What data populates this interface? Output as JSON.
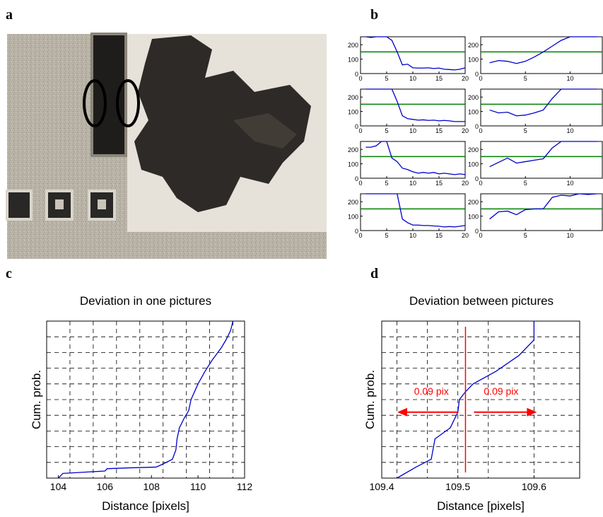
{
  "panels": {
    "a": {
      "letter": "a"
    },
    "b": {
      "letter": "b"
    },
    "c": {
      "letter": "c"
    },
    "d": {
      "letter": "d"
    }
  },
  "colors": {
    "series": "#0000cc",
    "threshold": "#008000",
    "marker": "#ff0000",
    "grid": "#000000"
  },
  "chart_data": [
    {
      "id": "b-profiles",
      "type": "line",
      "xticks": [
        0,
        5,
        10,
        15,
        20
      ],
      "yticks": [
        0,
        100,
        200
      ],
      "xlim": [
        0,
        20
      ],
      "ylim": [
        0,
        255
      ],
      "threshold": 150,
      "left_column": [
        {
          "x": [
            1,
            2,
            3,
            4,
            5,
            6,
            7,
            8,
            9,
            10,
            11,
            12,
            13,
            14,
            15,
            16,
            17,
            18,
            19,
            20
          ],
          "values": [
            255,
            250,
            255,
            255,
            255,
            230,
            150,
            60,
            65,
            40,
            38,
            38,
            40,
            35,
            38,
            30,
            28,
            25,
            30,
            40
          ]
        },
        {
          "x": [
            1,
            2,
            3,
            4,
            5,
            6,
            7,
            8,
            9,
            10,
            11,
            12,
            13,
            14,
            15,
            16,
            17,
            18,
            19,
            20
          ],
          "values": [
            255,
            255,
            255,
            255,
            255,
            255,
            170,
            70,
            50,
            45,
            40,
            42,
            38,
            40,
            35,
            38,
            35,
            30,
            30,
            30
          ]
        },
        {
          "x": [
            1,
            2,
            3,
            4,
            5,
            6,
            7,
            8,
            9,
            10,
            11,
            12,
            13,
            14,
            15,
            16,
            17,
            18,
            19,
            20
          ],
          "values": [
            215,
            215,
            225,
            255,
            255,
            140,
            115,
            70,
            60,
            45,
            35,
            40,
            35,
            40,
            30,
            35,
            30,
            25,
            30,
            25
          ]
        },
        {
          "x": [
            1,
            2,
            3,
            4,
            5,
            6,
            7,
            8,
            9,
            10,
            11,
            12,
            13,
            14,
            15,
            16,
            17,
            18,
            19,
            20
          ],
          "values": [
            255,
            255,
            255,
            255,
            255,
            255,
            255,
            80,
            55,
            38,
            38,
            35,
            35,
            32,
            30,
            25,
            28,
            25,
            30,
            35
          ]
        }
      ],
      "right_column": [
        {
          "x": [
            1,
            2,
            3,
            4,
            5,
            6,
            7,
            8,
            9,
            10,
            11,
            12,
            13
          ],
          "values": [
            75,
            90,
            85,
            70,
            85,
            115,
            150,
            190,
            230,
            255,
            255,
            255,
            255
          ]
        },
        {
          "x": [
            1,
            2,
            3,
            4,
            5,
            6,
            7,
            8,
            9,
            10,
            11,
            12,
            13
          ],
          "values": [
            110,
            90,
            95,
            70,
            75,
            90,
            110,
            190,
            255,
            255,
            255,
            255,
            255
          ]
        },
        {
          "x": [
            1,
            2,
            3,
            4,
            5,
            6,
            7,
            8,
            9,
            10,
            11,
            12,
            13
          ],
          "values": [
            80,
            110,
            140,
            105,
            115,
            125,
            135,
            210,
            255,
            255,
            255,
            255,
            255
          ]
        },
        {
          "x": [
            1,
            2,
            3,
            4,
            5,
            6,
            7,
            8,
            9,
            10,
            11,
            12,
            13
          ],
          "values": [
            80,
            130,
            135,
            110,
            145,
            150,
            150,
            230,
            245,
            240,
            255,
            250,
            255
          ]
        }
      ],
      "right_xticks": [
        0,
        5,
        10
      ]
    },
    {
      "id": "c-cumulative",
      "type": "line",
      "title": "Deviation in one pictures",
      "xlabel": "Distance [pixels]",
      "ylabel": "Cum. prob.",
      "xlim": [
        103.5,
        112
      ],
      "ylim": [
        0,
        1
      ],
      "xticks": [
        104,
        106,
        108,
        110,
        112
      ],
      "x_gridlines": [
        104.5,
        105.5,
        106.5,
        107.5,
        108.5,
        109.5,
        110.5,
        111.5
      ],
      "y_gridlines": [
        0.1,
        0.2,
        0.3,
        0.4,
        0.5,
        0.6,
        0.7,
        0.8,
        0.9
      ],
      "grid": true,
      "x": [
        104.0,
        104.2,
        106.0,
        106.1,
        107.0,
        108.2,
        108.5,
        108.9,
        109.05,
        109.1,
        109.2,
        109.4,
        109.6,
        109.7,
        110.0,
        110.3,
        110.6,
        111.0,
        111.2,
        111.4,
        111.5
      ],
      "values": [
        0.0,
        0.03,
        0.045,
        0.06,
        0.065,
        0.07,
        0.09,
        0.12,
        0.18,
        0.25,
        0.32,
        0.38,
        0.43,
        0.5,
        0.6,
        0.68,
        0.75,
        0.83,
        0.88,
        0.94,
        1.0
      ]
    },
    {
      "id": "d-cumulative",
      "type": "line",
      "title": "Deviation between pictures",
      "xlabel": "Distance [pixels]",
      "ylabel": "Cum. prob.",
      "xlim": [
        109.4,
        109.66
      ],
      "ylim": [
        0,
        1
      ],
      "xticks": [
        109.4,
        109.5,
        109.6
      ],
      "tick_labels": [
        "109.4",
        "109.5",
        "109.6"
      ],
      "x_gridlines": [
        109.42,
        109.46,
        109.5,
        109.54,
        109.6
      ],
      "y_gridlines": [
        0.1,
        0.2,
        0.3,
        0.4,
        0.5,
        0.6,
        0.7,
        0.8,
        0.9
      ],
      "grid": true,
      "x": [
        109.42,
        109.445,
        109.465,
        109.47,
        109.49,
        109.5,
        109.502,
        109.51,
        109.52,
        109.55,
        109.58,
        109.6,
        109.6
      ],
      "values": [
        0.0,
        0.07,
        0.12,
        0.25,
        0.32,
        0.42,
        0.5,
        0.55,
        0.6,
        0.68,
        0.78,
        0.88,
        1.0
      ],
      "annotations": {
        "vertical_line_x": 109.51,
        "arrow_y": 0.42,
        "left_label": "0.09 pix",
        "right_label": "0.09 pix"
      }
    }
  ]
}
